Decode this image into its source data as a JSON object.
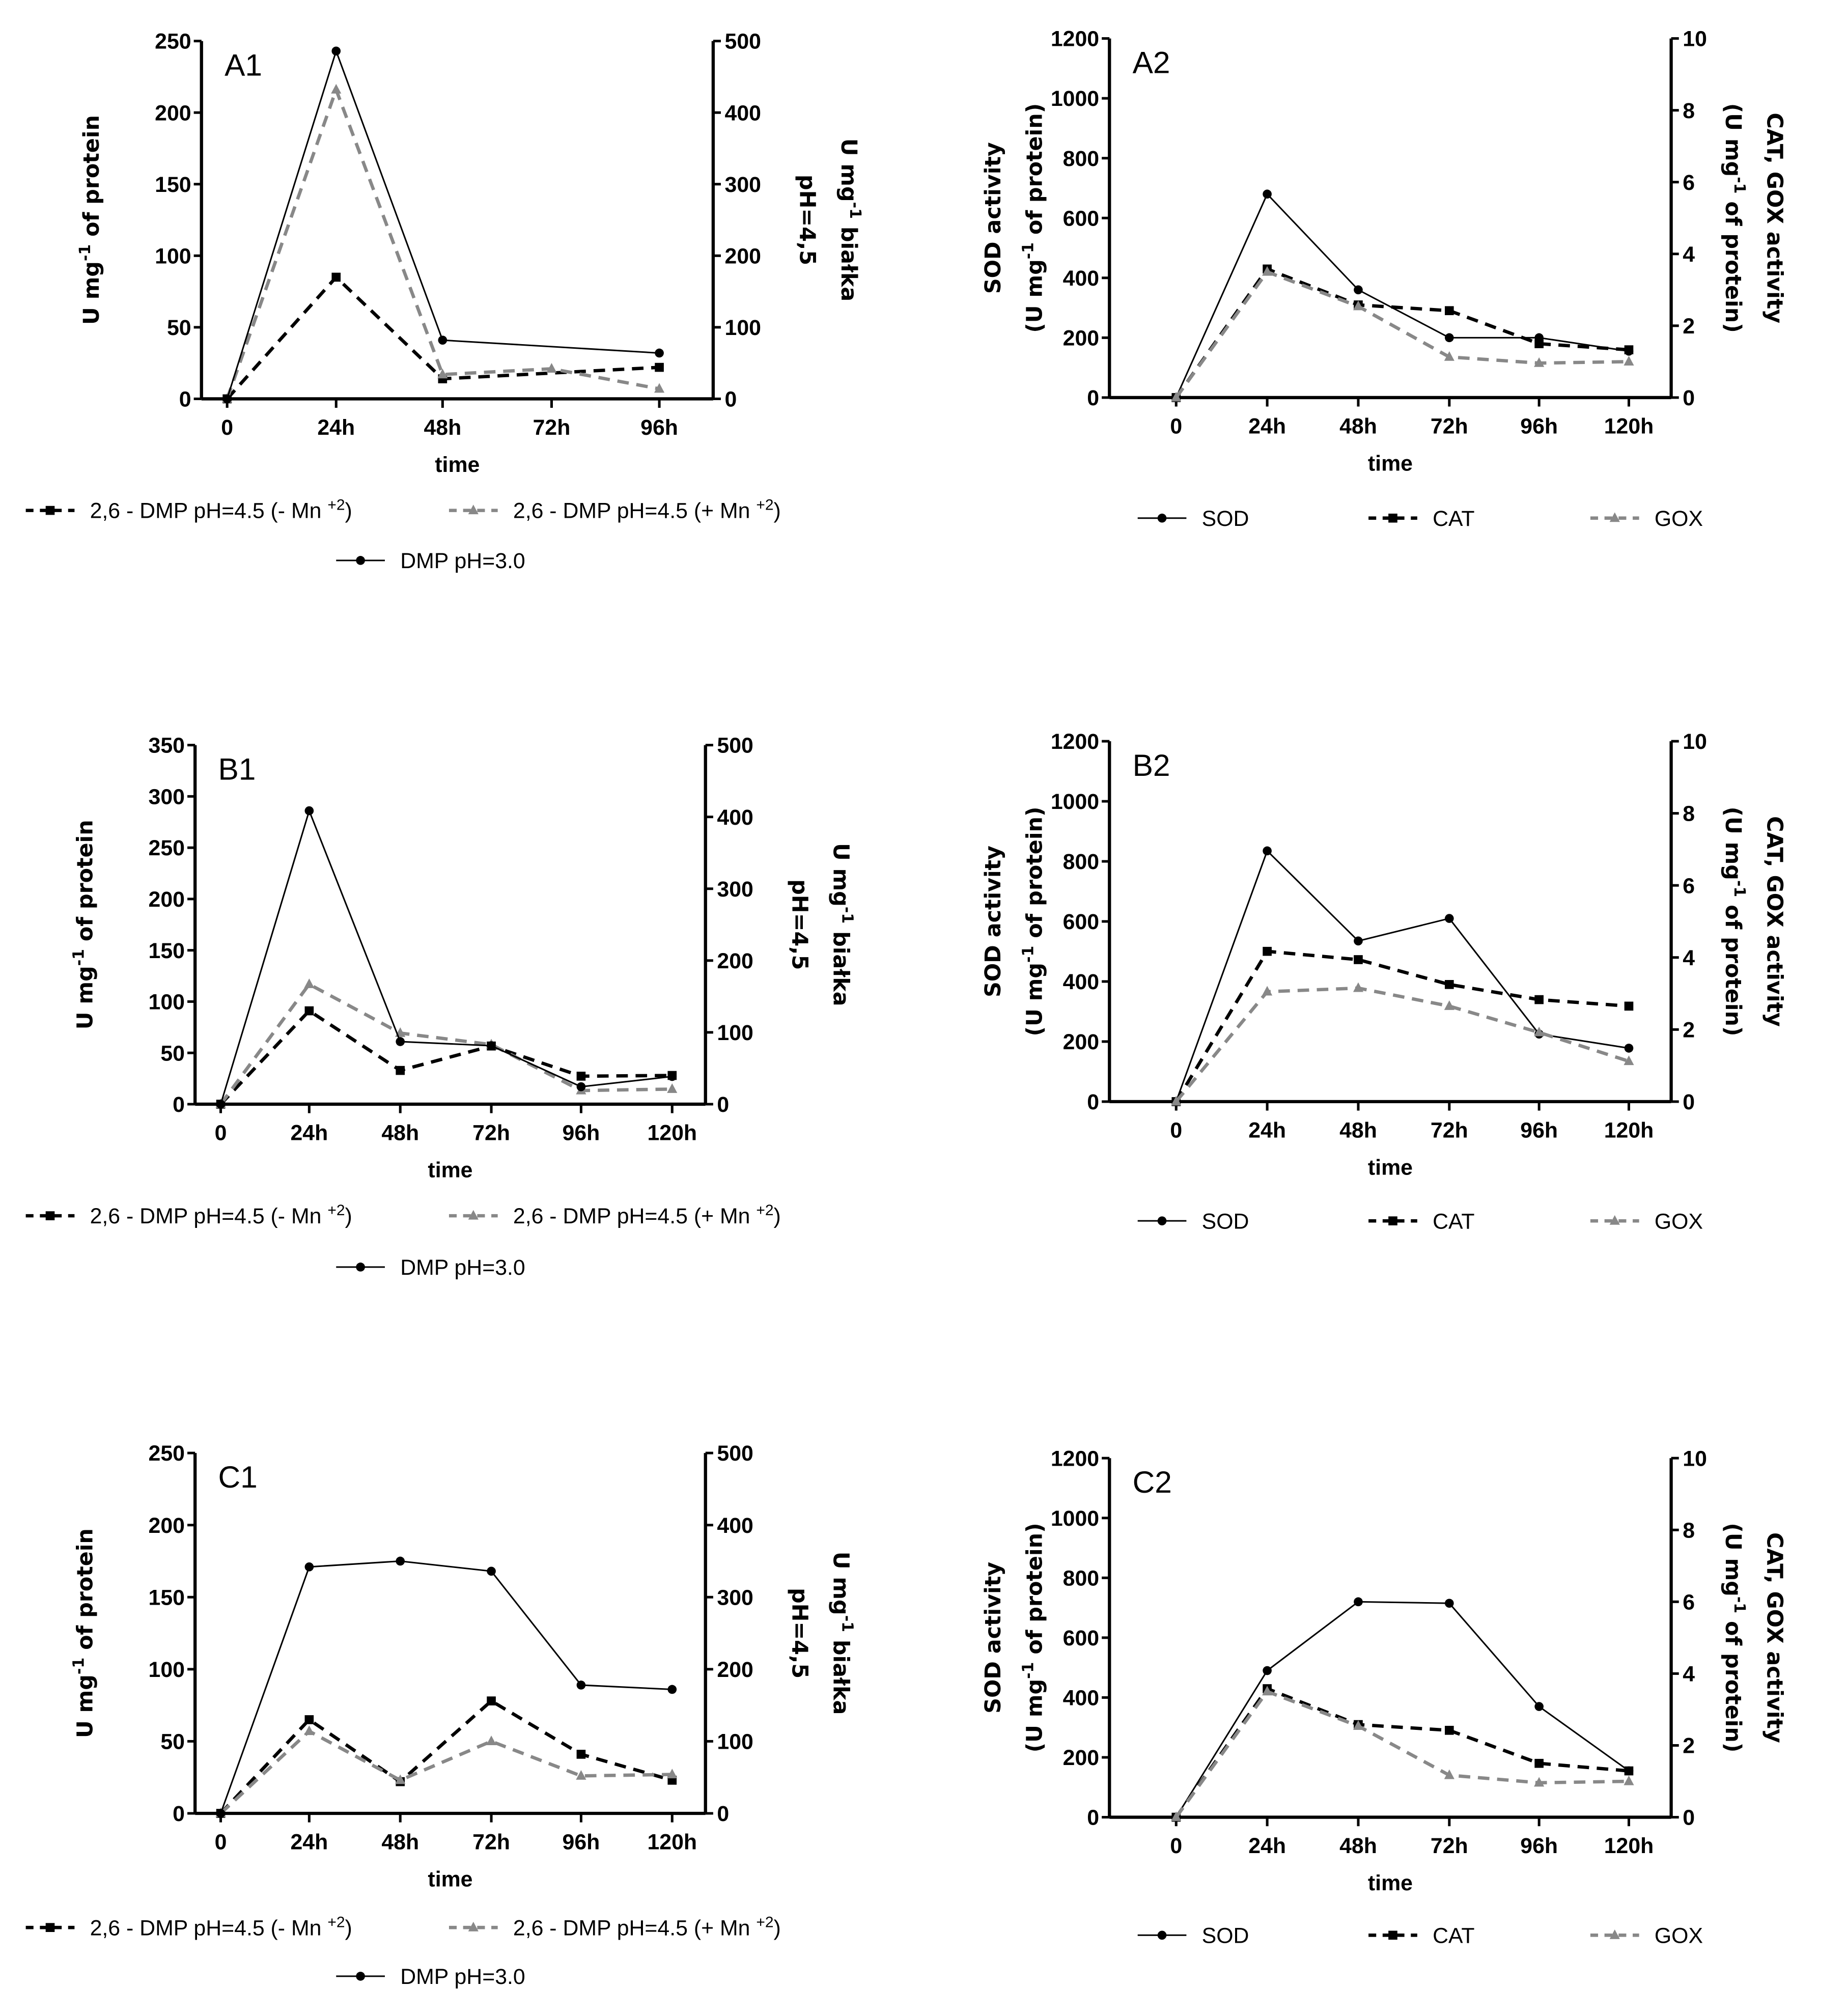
{
  "chart_data": [
    {
      "id": "A1",
      "type": "line",
      "title": "A1",
      "xlabel": "time",
      "x": [
        "0",
        "24h",
        "48h",
        "72h",
        "96h"
      ],
      "left": {
        "ylim": [
          0,
          250
        ],
        "ticks": [
          0,
          50,
          100,
          150,
          200,
          250
        ],
        "label": [
          [
            [
              "U mg",
              ""
            ],
            [
              "-1",
              "sup"
            ],
            [
              " of protein",
              ""
            ]
          ]
        ]
      },
      "right": {
        "ylim": [
          0,
          500
        ],
        "ticks": [
          0,
          100,
          200,
          300,
          400,
          500
        ],
        "label": [
          [
            [
              "U mg",
              ""
            ],
            [
              "-1",
              "sup"
            ],
            [
              " białka",
              ""
            ]
          ],
          [
            [
              "pH=4,5",
              ""
            ]
          ]
        ]
      },
      "series": [
        {
          "name": [
            [
              "2,6 - DMP pH=4.5 (- Mn ",
              ""
            ],
            [
              "+2",
              "sup"
            ],
            [
              ")",
              ""
            ]
          ],
          "axis": "right",
          "style": "dash-square",
          "values": [
            0,
            170,
            28,
            null,
            44
          ]
        },
        {
          "name": [
            [
              "2,6 - DMP pH=4.5 (+ Mn ",
              ""
            ],
            [
              "+2",
              "sup"
            ],
            [
              ")",
              ""
            ]
          ],
          "axis": "right",
          "style": "dash-triangle",
          "values": [
            0,
            432,
            34,
            42,
            14
          ]
        },
        {
          "name": [
            [
              "DMP pH=3.0",
              ""
            ]
          ],
          "axis": "left",
          "style": "solid-circle",
          "values": [
            0,
            243,
            41,
            null,
            32
          ]
        }
      ]
    },
    {
      "id": "A2",
      "type": "line",
      "title": "A2",
      "xlabel": "time",
      "x": [
        "0",
        "24h",
        "48h",
        "72h",
        "96h",
        "120h"
      ],
      "left": {
        "ylim": [
          0,
          1200
        ],
        "ticks": [
          0,
          200,
          400,
          600,
          800,
          1000,
          1200
        ],
        "label": [
          [
            [
              "SOD activity",
              ""
            ]
          ],
          [
            [
              "(U mg",
              ""
            ],
            [
              "-1",
              "sup"
            ],
            [
              " of protein)",
              ""
            ]
          ]
        ]
      },
      "right": {
        "ylim": [
          0,
          10
        ],
        "ticks": [
          0,
          2,
          4,
          6,
          8,
          10
        ],
        "label": [
          [
            [
              "CAT, GOX activity",
              ""
            ]
          ],
          [
            [
              "(U mg",
              ""
            ],
            [
              "-1",
              "sup"
            ],
            [
              " of protein)",
              ""
            ]
          ]
        ]
      },
      "series": [
        {
          "name": [
            [
              "SOD",
              ""
            ]
          ],
          "axis": "left",
          "style": "solid-circle",
          "values": [
            0,
            680,
            360,
            200,
            200,
            155
          ]
        },
        {
          "name": [
            [
              "CAT",
              ""
            ]
          ],
          "axis": "right",
          "style": "dash-square",
          "values": [
            0,
            3.58,
            2.58,
            2.42,
            1.5,
            1.33
          ]
        },
        {
          "name": [
            [
              "GOX",
              ""
            ]
          ],
          "axis": "right",
          "style": "dash-triangle",
          "values": [
            0,
            3.5,
            2.54,
            1.13,
            0.96,
            1.0
          ]
        }
      ]
    },
    {
      "id": "B1",
      "type": "line",
      "title": "B1",
      "xlabel": "time",
      "x": [
        "0",
        "24h",
        "48h",
        "72h",
        "96h",
        "120h"
      ],
      "left": {
        "ylim": [
          0,
          350
        ],
        "ticks": [
          0,
          50,
          100,
          150,
          200,
          250,
          300,
          350
        ],
        "label": [
          [
            [
              "U mg",
              ""
            ],
            [
              "-1",
              "sup"
            ],
            [
              " of protein",
              ""
            ]
          ]
        ]
      },
      "right": {
        "ylim": [
          0,
          500
        ],
        "ticks": [
          0,
          100,
          200,
          300,
          400,
          500
        ],
        "label": [
          [
            [
              "U mg",
              ""
            ],
            [
              "-1",
              "sup"
            ],
            [
              " białka",
              ""
            ]
          ],
          [
            [
              "pH=4,5",
              ""
            ]
          ]
        ]
      },
      "series": [
        {
          "name": [
            [
              "2,6 - DMP pH=4.5 (- Mn ",
              ""
            ],
            [
              "+2",
              "sup"
            ],
            [
              ")",
              ""
            ]
          ],
          "axis": "right",
          "style": "dash-square",
          "values": [
            0,
            130,
            47,
            81,
            39,
            40
          ]
        },
        {
          "name": [
            [
              "2,6 - DMP pH=4.5 (+ Mn ",
              ""
            ],
            [
              "+2",
              "sup"
            ],
            [
              ")",
              ""
            ]
          ],
          "axis": "right",
          "style": "dash-triangle",
          "values": [
            0,
            167,
            99,
            83,
            19,
            21
          ]
        },
        {
          "name": [
            [
              "DMP pH=3.0",
              ""
            ]
          ],
          "axis": "left",
          "style": "solid-circle",
          "values": [
            0,
            286,
            61,
            57,
            17,
            27
          ]
        }
      ]
    },
    {
      "id": "B2",
      "type": "line",
      "title": "B2",
      "xlabel": "time",
      "x": [
        "0",
        "24h",
        "48h",
        "72h",
        "96h",
        "120h"
      ],
      "left": {
        "ylim": [
          0,
          1200
        ],
        "ticks": [
          0,
          200,
          400,
          600,
          800,
          1000,
          1200
        ],
        "label": [
          [
            [
              "SOD activity",
              ""
            ]
          ],
          [
            [
              "(U mg",
              ""
            ],
            [
              "-1",
              "sup"
            ],
            [
              " of protein)",
              ""
            ]
          ]
        ]
      },
      "right": {
        "ylim": [
          0,
          10
        ],
        "ticks": [
          0,
          2,
          4,
          6,
          8,
          10
        ],
        "label": [
          [
            [
              "CAT, GOX activity",
              ""
            ]
          ],
          [
            [
              "(U mg",
              ""
            ],
            [
              "-1",
              "sup"
            ],
            [
              " of protein)",
              ""
            ]
          ]
        ]
      },
      "series": [
        {
          "name": [
            [
              "SOD",
              ""
            ]
          ],
          "axis": "left",
          "style": "solid-circle",
          "values": [
            0,
            835,
            535,
            610,
            225,
            178
          ]
        },
        {
          "name": [
            [
              "CAT",
              ""
            ]
          ],
          "axis": "right",
          "style": "dash-square",
          "values": [
            0,
            4.17,
            3.94,
            3.25,
            2.83,
            2.65
          ]
        },
        {
          "name": [
            [
              "GOX",
              ""
            ]
          ],
          "axis": "right",
          "style": "dash-triangle",
          "values": [
            0,
            3.05,
            3.15,
            2.65,
            1.92,
            1.12
          ]
        }
      ]
    },
    {
      "id": "C1",
      "type": "line",
      "title": "C1",
      "xlabel": "time",
      "x": [
        "0",
        "24h",
        "48h",
        "72h",
        "96h",
        "120h"
      ],
      "left": {
        "ylim": [
          0,
          250
        ],
        "ticks": [
          0,
          50,
          100,
          150,
          200,
          250
        ],
        "label": [
          [
            [
              "U mg",
              ""
            ],
            [
              "-1",
              "sup"
            ],
            [
              " of protein",
              ""
            ]
          ]
        ]
      },
      "right": {
        "ylim": [
          0,
          500
        ],
        "ticks": [
          0,
          100,
          200,
          300,
          400,
          500
        ],
        "label": [
          [
            [
              "U mg",
              ""
            ],
            [
              "-1",
              "sup"
            ],
            [
              " białka",
              ""
            ]
          ],
          [
            [
              "pH=4,5",
              ""
            ]
          ]
        ]
      },
      "series": [
        {
          "name": [
            [
              "2,6 - DMP pH=4.5 (- Mn ",
              ""
            ],
            [
              "+2",
              "sup"
            ],
            [
              ")",
              ""
            ]
          ],
          "axis": "right",
          "style": "dash-square",
          "values": [
            0,
            130,
            44,
            156,
            82,
            46
          ]
        },
        {
          "name": [
            [
              "2,6 - DMP pH=4.5 (+ Mn ",
              ""
            ],
            [
              "+2",
              "sup"
            ],
            [
              ")",
              ""
            ]
          ],
          "axis": "right",
          "style": "dash-triangle",
          "values": [
            0,
            114,
            46,
            100,
            52,
            54
          ]
        },
        {
          "name": [
            [
              "DMP pH=3.0",
              ""
            ]
          ],
          "axis": "left",
          "style": "solid-circle",
          "values": [
            0,
            171,
            175,
            168,
            89,
            86
          ]
        }
      ]
    },
    {
      "id": "C2",
      "type": "line",
      "title": "C2",
      "xlabel": "time",
      "x": [
        "0",
        "24h",
        "48h",
        "72h",
        "96h",
        "120h"
      ],
      "left": {
        "ylim": [
          0,
          1200
        ],
        "ticks": [
          0,
          200,
          400,
          600,
          800,
          1000,
          1200
        ],
        "label": [
          [
            [
              "SOD activity",
              ""
            ]
          ],
          [
            [
              "(U mg",
              ""
            ],
            [
              "-1",
              "sup"
            ],
            [
              " of protein)",
              ""
            ]
          ]
        ]
      },
      "right": {
        "ylim": [
          0,
          10
        ],
        "ticks": [
          0,
          2,
          4,
          6,
          8,
          10
        ],
        "label": [
          [
            [
              "CAT, GOX activity",
              ""
            ]
          ],
          [
            [
              "(U mg",
              ""
            ],
            [
              "-1",
              "sup"
            ],
            [
              " of protein)",
              ""
            ]
          ]
        ]
      },
      "series": [
        {
          "name": [
            [
              "SOD",
              ""
            ]
          ],
          "axis": "left",
          "style": "solid-circle",
          "values": [
            0,
            490,
            720,
            715,
            370,
            155
          ]
        },
        {
          "name": [
            [
              "CAT",
              ""
            ]
          ],
          "axis": "right",
          "style": "dash-square",
          "values": [
            0,
            3.58,
            2.58,
            2.42,
            1.5,
            1.29
          ]
        },
        {
          "name": [
            [
              "GOX",
              ""
            ]
          ],
          "axis": "right",
          "style": "dash-triangle",
          "values": [
            0,
            3.5,
            2.54,
            1.17,
            0.96,
            1.0
          ]
        }
      ]
    }
  ]
}
